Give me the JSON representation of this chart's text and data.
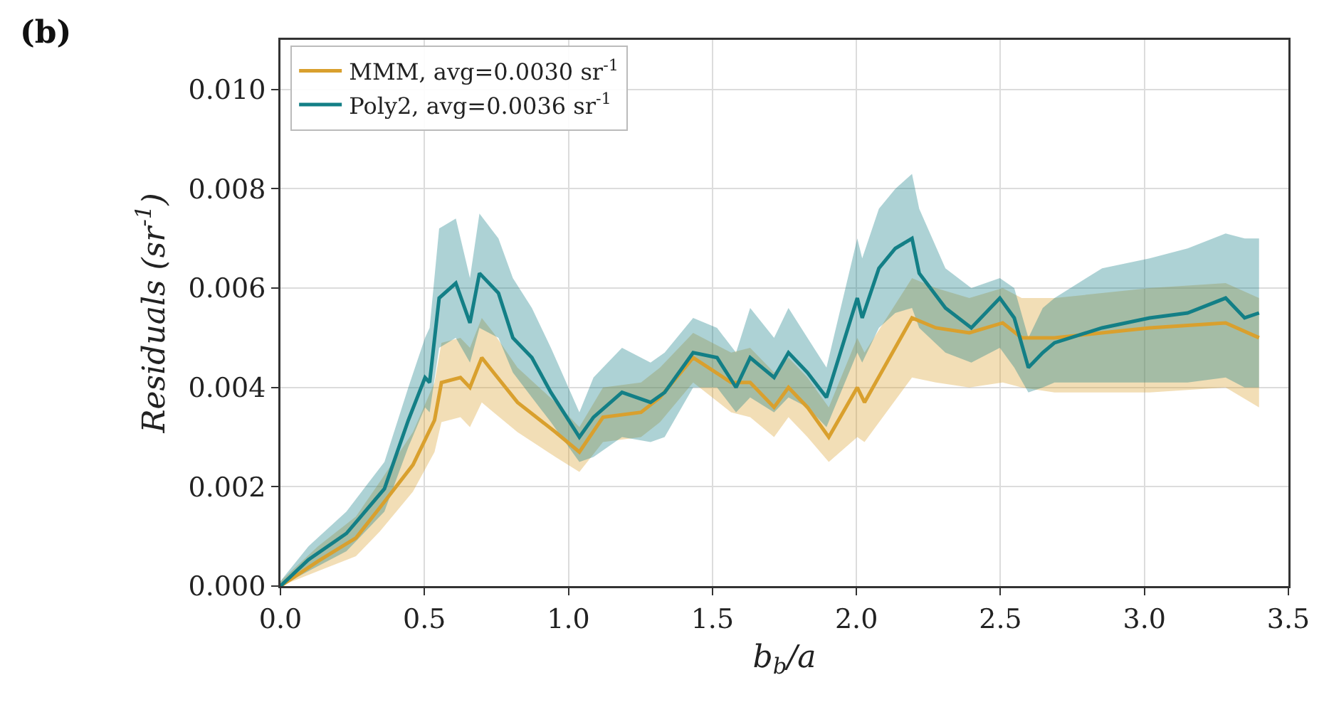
{
  "chart_data": {
    "type": "line",
    "title": "(b)",
    "xlabel": "b$_{b}$/a",
    "ylabel": "Residuals (sr$^{-1}$)",
    "xlim": [
      0,
      3.5
    ],
    "xticks": [
      {
        "value": 0,
        "label": "0.0"
      },
      {
        "value": 0.5,
        "label": "0.5"
      },
      {
        "value": 1,
        "label": "1.0"
      },
      {
        "value": 1.5,
        "label": "1.5"
      },
      {
        "value": 2,
        "label": "2.0"
      },
      {
        "value": 2.5,
        "label": "2.5"
      },
      {
        "value": 3,
        "label": "3.0"
      },
      {
        "value": 3.5,
        "label": "3.5"
      }
    ],
    "ylim": [
      0,
      0.011
    ],
    "yticks": [
      {
        "value": 0,
        "label": "0.000"
      },
      {
        "value": 0.002,
        "label": "0.002"
      },
      {
        "value": 0.004,
        "label": "0.004"
      },
      {
        "value": 0.006,
        "label": "0.006"
      },
      {
        "value": 0.008,
        "label": "0.008"
      },
      {
        "value": 0.01,
        "label": "0.010"
      }
    ],
    "grid": true,
    "legend": "top left",
    "line_style": "solid",
    "series": [
      {
        "name": "MMM, avg=0.0030 sr$^{-1}$",
        "color": "#d9a02e",
        "x": [
          0,
          0.13,
          0.262,
          0.345,
          0.46,
          0.535,
          0.559,
          0.625,
          0.658,
          0.699,
          0.74,
          0.823,
          0.955,
          1.038,
          1.12,
          1.252,
          1.318,
          1.433,
          1.565,
          1.631,
          1.714,
          1.764,
          1.83,
          1.904,
          2.003,
          2.028,
          2.193,
          2.276,
          2.392,
          2.508,
          2.574,
          2.688,
          3.018,
          3.282,
          3.398
        ],
        "values": [
          0,
          0.0005,
          0.00097,
          0.00158,
          0.00244,
          0.00334,
          0.0041,
          0.0042,
          0.004,
          0.0046,
          0.0043,
          0.0037,
          0.0031,
          0.0027,
          0.0034,
          0.0035,
          0.0038,
          0.0046,
          0.0041,
          0.0041,
          0.0036,
          0.004,
          0.0036,
          0.003,
          0.004,
          0.0037,
          0.0054,
          0.0052,
          0.0051,
          0.0053,
          0.005,
          0.005,
          0.0052,
          0.0053,
          0.005
        ],
        "lower": [
          0,
          0.0003,
          0.0006,
          0.0011,
          0.0019,
          0.0027,
          0.0033,
          0.0034,
          0.0032,
          0.0037,
          0.0035,
          0.0031,
          0.0026,
          0.0023,
          0.0029,
          0.003,
          0.0033,
          0.0041,
          0.0035,
          0.0034,
          0.003,
          0.0034,
          0.003,
          0.0025,
          0.003,
          0.0029,
          0.0042,
          0.0041,
          0.004,
          0.0041,
          0.004,
          0.0039,
          0.0039,
          0.004,
          0.0036
        ],
        "upper": [
          0.0001,
          0.0008,
          0.0014,
          0.0021,
          0.0031,
          0.0041,
          0.0049,
          0.005,
          0.0048,
          0.0054,
          0.0051,
          0.0044,
          0.0037,
          0.0032,
          0.004,
          0.0041,
          0.0044,
          0.0051,
          0.0047,
          0.0048,
          0.0043,
          0.0046,
          0.0042,
          0.0036,
          0.005,
          0.0047,
          0.0062,
          0.006,
          0.0058,
          0.006,
          0.0058,
          0.0058,
          0.006,
          0.0061,
          0.0058
        ]
      },
      {
        "name": "Poly2, avg=0.0036 sr$^{-1}$",
        "color": "#137f86",
        "x": [
          0,
          0.097,
          0.229,
          0.361,
          0.444,
          0.502,
          0.518,
          0.551,
          0.609,
          0.658,
          0.691,
          0.757,
          0.807,
          0.873,
          0.939,
          1.038,
          1.087,
          1.186,
          1.285,
          1.334,
          1.433,
          1.516,
          1.582,
          1.631,
          1.714,
          1.764,
          1.83,
          1.896,
          2.003,
          2.02,
          2.078,
          2.135,
          2.193,
          2.218,
          2.309,
          2.399,
          2.498,
          2.548,
          2.597,
          2.647,
          2.688,
          2.853,
          3.018,
          3.15,
          3.282,
          3.348,
          3.398
        ],
        "values": [
          0,
          0.00053,
          0.00106,
          0.00196,
          0.00334,
          0.0042,
          0.0041,
          0.0058,
          0.0061,
          0.0053,
          0.0063,
          0.0059,
          0.005,
          0.0046,
          0.0039,
          0.003,
          0.0034,
          0.0039,
          0.0037,
          0.0039,
          0.0047,
          0.0046,
          0.004,
          0.0046,
          0.0042,
          0.0047,
          0.0043,
          0.0038,
          0.0058,
          0.0054,
          0.0064,
          0.0068,
          0.007,
          0.0063,
          0.0056,
          0.0052,
          0.0058,
          0.0054,
          0.0044,
          0.0047,
          0.0049,
          0.0052,
          0.0054,
          0.0055,
          0.0058,
          0.0054,
          0.0055
        ],
        "lower": [
          0,
          0.0003,
          0.0007,
          0.0015,
          0.0028,
          0.0036,
          0.0035,
          0.0048,
          0.005,
          0.0045,
          0.0052,
          0.005,
          0.0043,
          0.0038,
          0.0033,
          0.0025,
          0.0026,
          0.003,
          0.0029,
          0.003,
          0.004,
          0.004,
          0.0035,
          0.0038,
          0.0035,
          0.0038,
          0.0036,
          0.0032,
          0.0047,
          0.0045,
          0.0052,
          0.0055,
          0.0056,
          0.0052,
          0.0047,
          0.0045,
          0.0048,
          0.0044,
          0.0039,
          0.004,
          0.0041,
          0.0041,
          0.0041,
          0.0041,
          0.0042,
          0.004,
          0.004
        ],
        "upper": [
          0.0001,
          0.0008,
          0.0015,
          0.0025,
          0.004,
          0.005,
          0.0052,
          0.0072,
          0.0074,
          0.0062,
          0.0075,
          0.007,
          0.0062,
          0.0056,
          0.0048,
          0.0035,
          0.0042,
          0.0048,
          0.0045,
          0.0047,
          0.0054,
          0.0052,
          0.0047,
          0.0056,
          0.005,
          0.0056,
          0.005,
          0.0044,
          0.007,
          0.0066,
          0.0076,
          0.008,
          0.0083,
          0.0076,
          0.0064,
          0.006,
          0.0062,
          0.006,
          0.005,
          0.0056,
          0.0058,
          0.0064,
          0.0066,
          0.0068,
          0.0071,
          0.007,
          0.007
        ]
      }
    ]
  }
}
